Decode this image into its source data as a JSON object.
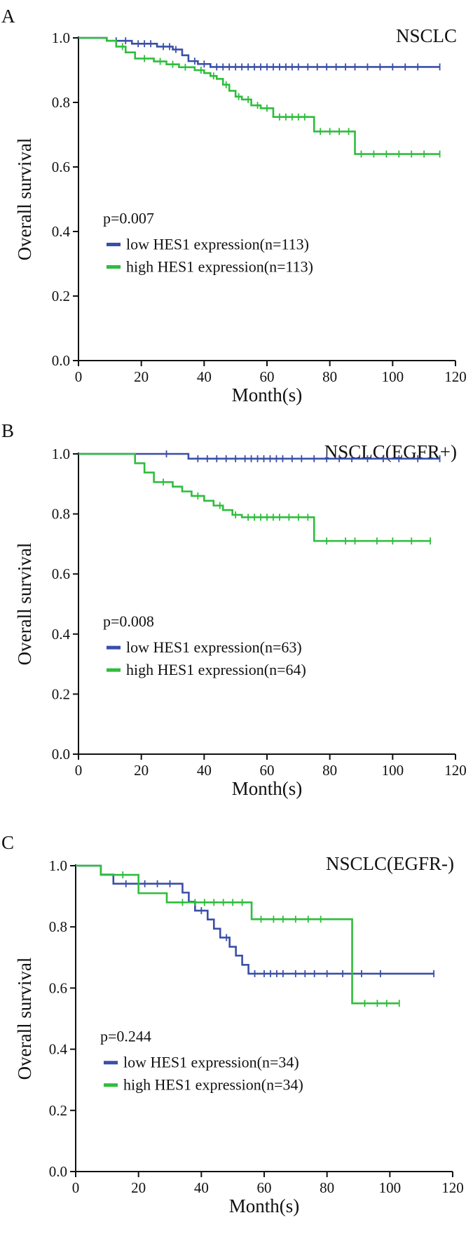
{
  "colors": {
    "low": "#3a4fa7",
    "high": "#2fbd3c",
    "axis": "#111111"
  },
  "chart_data": [
    {
      "type": "line",
      "panel_letter": "A",
      "title": "NSCLC",
      "xlabel": "Month(s)",
      "ylabel": "Overall survival",
      "xlim": [
        0,
        120
      ],
      "ylim": [
        0.0,
        1.0
      ],
      "xticks": [
        "0",
        "20",
        "40",
        "60",
        "80",
        "100",
        "120"
      ],
      "yticks": [
        "0.0",
        "0.2",
        "0.4",
        "0.6",
        "0.8",
        "1.0"
      ],
      "p_value": "p=0.007",
      "legend_position": "lower-left",
      "series": [
        {
          "name": "low HES1 expression(n=113)",
          "color_key": "low",
          "steps": [
            [
              0,
              1.0
            ],
            [
              9,
              0.991
            ],
            [
              17,
              0.982
            ],
            [
              25,
              0.973
            ],
            [
              30,
              0.964
            ],
            [
              33,
              0.946
            ],
            [
              35,
              0.928
            ],
            [
              38,
              0.919
            ],
            [
              42,
              0.91
            ],
            [
              115,
              0.91
            ]
          ],
          "censored": [
            [
              12,
              0.991
            ],
            [
              15,
              0.991
            ],
            [
              19,
              0.982
            ],
            [
              21,
              0.982
            ],
            [
              23,
              0.982
            ],
            [
              27,
              0.973
            ],
            [
              29,
              0.973
            ],
            [
              31,
              0.964
            ],
            [
              37,
              0.928
            ],
            [
              40,
              0.919
            ],
            [
              44,
              0.91
            ],
            [
              46,
              0.91
            ],
            [
              48,
              0.91
            ],
            [
              50,
              0.91
            ],
            [
              52,
              0.91
            ],
            [
              54,
              0.91
            ],
            [
              56,
              0.91
            ],
            [
              58,
              0.91
            ],
            [
              60,
              0.91
            ],
            [
              62,
              0.91
            ],
            [
              64,
              0.91
            ],
            [
              66,
              0.91
            ],
            [
              68,
              0.91
            ],
            [
              70,
              0.91
            ],
            [
              73,
              0.91
            ],
            [
              76,
              0.91
            ],
            [
              79,
              0.91
            ],
            [
              82,
              0.91
            ],
            [
              85,
              0.91
            ],
            [
              88,
              0.91
            ],
            [
              92,
              0.91
            ],
            [
              96,
              0.91
            ],
            [
              100,
              0.91
            ],
            [
              104,
              0.91
            ],
            [
              108,
              0.91
            ],
            [
              115,
              0.91
            ]
          ]
        },
        {
          "name": "high HES1 expression(n=113)",
          "color_key": "high",
          "steps": [
            [
              0,
              1.0
            ],
            [
              9,
              0.991
            ],
            [
              12,
              0.973
            ],
            [
              15,
              0.955
            ],
            [
              18,
              0.936
            ],
            [
              24,
              0.927
            ],
            [
              28,
              0.918
            ],
            [
              32,
              0.909
            ],
            [
              37,
              0.9
            ],
            [
              40,
              0.891
            ],
            [
              42,
              0.882
            ],
            [
              44,
              0.873
            ],
            [
              46,
              0.855
            ],
            [
              48,
              0.836
            ],
            [
              50,
              0.818
            ],
            [
              52,
              0.809
            ],
            [
              55,
              0.791
            ],
            [
              58,
              0.782
            ],
            [
              62,
              0.755
            ],
            [
              75,
              0.71
            ],
            [
              88,
              0.64
            ],
            [
              115,
              0.64
            ]
          ],
          "censored": [
            [
              14,
              0.973
            ],
            [
              21,
              0.936
            ],
            [
              26,
              0.927
            ],
            [
              30,
              0.918
            ],
            [
              34,
              0.909
            ],
            [
              39,
              0.9
            ],
            [
              43,
              0.882
            ],
            [
              47,
              0.855
            ],
            [
              51,
              0.818
            ],
            [
              54,
              0.809
            ],
            [
              57,
              0.791
            ],
            [
              60,
              0.782
            ],
            [
              64,
              0.755
            ],
            [
              66,
              0.755
            ],
            [
              68,
              0.755
            ],
            [
              70,
              0.755
            ],
            [
              72,
              0.755
            ],
            [
              77,
              0.71
            ],
            [
              80,
              0.71
            ],
            [
              83,
              0.71
            ],
            [
              86,
              0.71
            ],
            [
              90,
              0.64
            ],
            [
              94,
              0.64
            ],
            [
              98,
              0.64
            ],
            [
              102,
              0.64
            ],
            [
              106,
              0.64
            ],
            [
              110,
              0.64
            ],
            [
              115,
              0.64
            ]
          ]
        }
      ]
    },
    {
      "type": "line",
      "panel_letter": "B",
      "title": "NSCLC(EGFR+)",
      "xlabel": "Month(s)",
      "ylabel": "Overall survival",
      "xlim": [
        0,
        120
      ],
      "ylim": [
        0.0,
        1.0
      ],
      "xticks": [
        "0",
        "20",
        "40",
        "60",
        "80",
        "100",
        "120"
      ],
      "yticks": [
        "0.0",
        "0.2",
        "0.4",
        "0.6",
        "0.8",
        "1.0"
      ],
      "p_value": "p=0.008",
      "legend_position": "lower-left",
      "series": [
        {
          "name": "low HES1 expression(n=63)",
          "color_key": "low",
          "steps": [
            [
              0,
              1.0
            ],
            [
              35,
              0.984
            ],
            [
              115,
              0.984
            ]
          ],
          "censored": [
            [
              28,
              1.0
            ],
            [
              38,
              0.984
            ],
            [
              41,
              0.984
            ],
            [
              44,
              0.984
            ],
            [
              47,
              0.984
            ],
            [
              50,
              0.984
            ],
            [
              53,
              0.984
            ],
            [
              55,
              0.984
            ],
            [
              57,
              0.984
            ],
            [
              59,
              0.984
            ],
            [
              61,
              0.984
            ],
            [
              63,
              0.984
            ],
            [
              65,
              0.984
            ],
            [
              68,
              0.984
            ],
            [
              71,
              0.984
            ],
            [
              75,
              0.984
            ],
            [
              79,
              0.984
            ],
            [
              83,
              0.984
            ],
            [
              87,
              0.984
            ],
            [
              92,
              0.984
            ],
            [
              97,
              0.984
            ],
            [
              102,
              0.984
            ],
            [
              108,
              0.984
            ],
            [
              115,
              0.984
            ]
          ]
        },
        {
          "name": "high HES1 expression(n=64)",
          "color_key": "high",
          "steps": [
            [
              0,
              1.0
            ],
            [
              18,
              0.969
            ],
            [
              21,
              0.938
            ],
            [
              24,
              0.906
            ],
            [
              30,
              0.891
            ],
            [
              33,
              0.875
            ],
            [
              36,
              0.86
            ],
            [
              40,
              0.844
            ],
            [
              43,
              0.828
            ],
            [
              46,
              0.813
            ],
            [
              49,
              0.797
            ],
            [
              52,
              0.789
            ],
            [
              75,
              0.71
            ],
            [
              112,
              0.71
            ]
          ],
          "censored": [
            [
              27,
              0.906
            ],
            [
              38,
              0.86
            ],
            [
              45,
              0.828
            ],
            [
              50,
              0.797
            ],
            [
              54,
              0.789
            ],
            [
              56,
              0.789
            ],
            [
              58,
              0.789
            ],
            [
              60,
              0.789
            ],
            [
              62,
              0.789
            ],
            [
              64,
              0.789
            ],
            [
              67,
              0.789
            ],
            [
              70,
              0.789
            ],
            [
              73,
              0.789
            ],
            [
              79,
              0.71
            ],
            [
              85,
              0.71
            ],
            [
              88,
              0.71
            ],
            [
              95,
              0.71
            ],
            [
              100,
              0.71
            ],
            [
              106,
              0.71
            ],
            [
              112,
              0.71
            ]
          ]
        }
      ]
    },
    {
      "type": "line",
      "panel_letter": "C",
      "title": "NSCLC(EGFR-)",
      "xlabel": "Month(s)",
      "ylabel": "Overall survival",
      "xlim": [
        0,
        120
      ],
      "ylim": [
        0.0,
        1.0
      ],
      "xticks": [
        "0",
        "20",
        "40",
        "60",
        "80",
        "100",
        "120"
      ],
      "yticks": [
        "0.0",
        "0.2",
        "0.4",
        "0.6",
        "0.8",
        "1.0"
      ],
      "p_value": "p=0.244",
      "legend_position": "lower-left",
      "series": [
        {
          "name": "low HES1 expression(n=34)",
          "color_key": "low",
          "steps": [
            [
              0,
              1.0
            ],
            [
              8,
              0.971
            ],
            [
              12,
              0.941
            ],
            [
              34,
              0.912
            ],
            [
              36,
              0.882
            ],
            [
              38,
              0.853
            ],
            [
              42,
              0.824
            ],
            [
              44,
              0.794
            ],
            [
              46,
              0.765
            ],
            [
              49,
              0.735
            ],
            [
              51,
              0.706
            ],
            [
              53,
              0.676
            ],
            [
              55,
              0.647
            ],
            [
              114,
              0.647
            ]
          ],
          "censored": [
            [
              16,
              0.941
            ],
            [
              22,
              0.941
            ],
            [
              26,
              0.941
            ],
            [
              30,
              0.941
            ],
            [
              40,
              0.853
            ],
            [
              48,
              0.765
            ],
            [
              57,
              0.647
            ],
            [
              60,
              0.647
            ],
            [
              62,
              0.647
            ],
            [
              64,
              0.647
            ],
            [
              66,
              0.647
            ],
            [
              70,
              0.647
            ],
            [
              73,
              0.647
            ],
            [
              76,
              0.647
            ],
            [
              80,
              0.647
            ],
            [
              85,
              0.647
            ],
            [
              91,
              0.647
            ],
            [
              97,
              0.647
            ],
            [
              114,
              0.647
            ]
          ]
        },
        {
          "name": "high HES1 expression(n=34)",
          "color_key": "high",
          "steps": [
            [
              0,
              1.0
            ],
            [
              8,
              0.97
            ],
            [
              20,
              0.91
            ],
            [
              22,
              0.91
            ],
            [
              29,
              0.88
            ],
            [
              56,
              0.825
            ],
            [
              88,
              0.55
            ],
            [
              103,
              0.55
            ]
          ],
          "censored": [
            [
              15,
              0.97
            ],
            [
              34,
              0.88
            ],
            [
              38,
              0.88
            ],
            [
              41,
              0.88
            ],
            [
              44,
              0.88
            ],
            [
              47,
              0.88
            ],
            [
              50,
              0.88
            ],
            [
              53,
              0.88
            ],
            [
              59,
              0.825
            ],
            [
              63,
              0.825
            ],
            [
              66,
              0.825
            ],
            [
              70,
              0.825
            ],
            [
              74,
              0.825
            ],
            [
              78,
              0.825
            ],
            [
              92,
              0.55
            ],
            [
              96,
              0.55
            ],
            [
              99,
              0.55
            ],
            [
              103,
              0.55
            ]
          ]
        }
      ]
    }
  ]
}
